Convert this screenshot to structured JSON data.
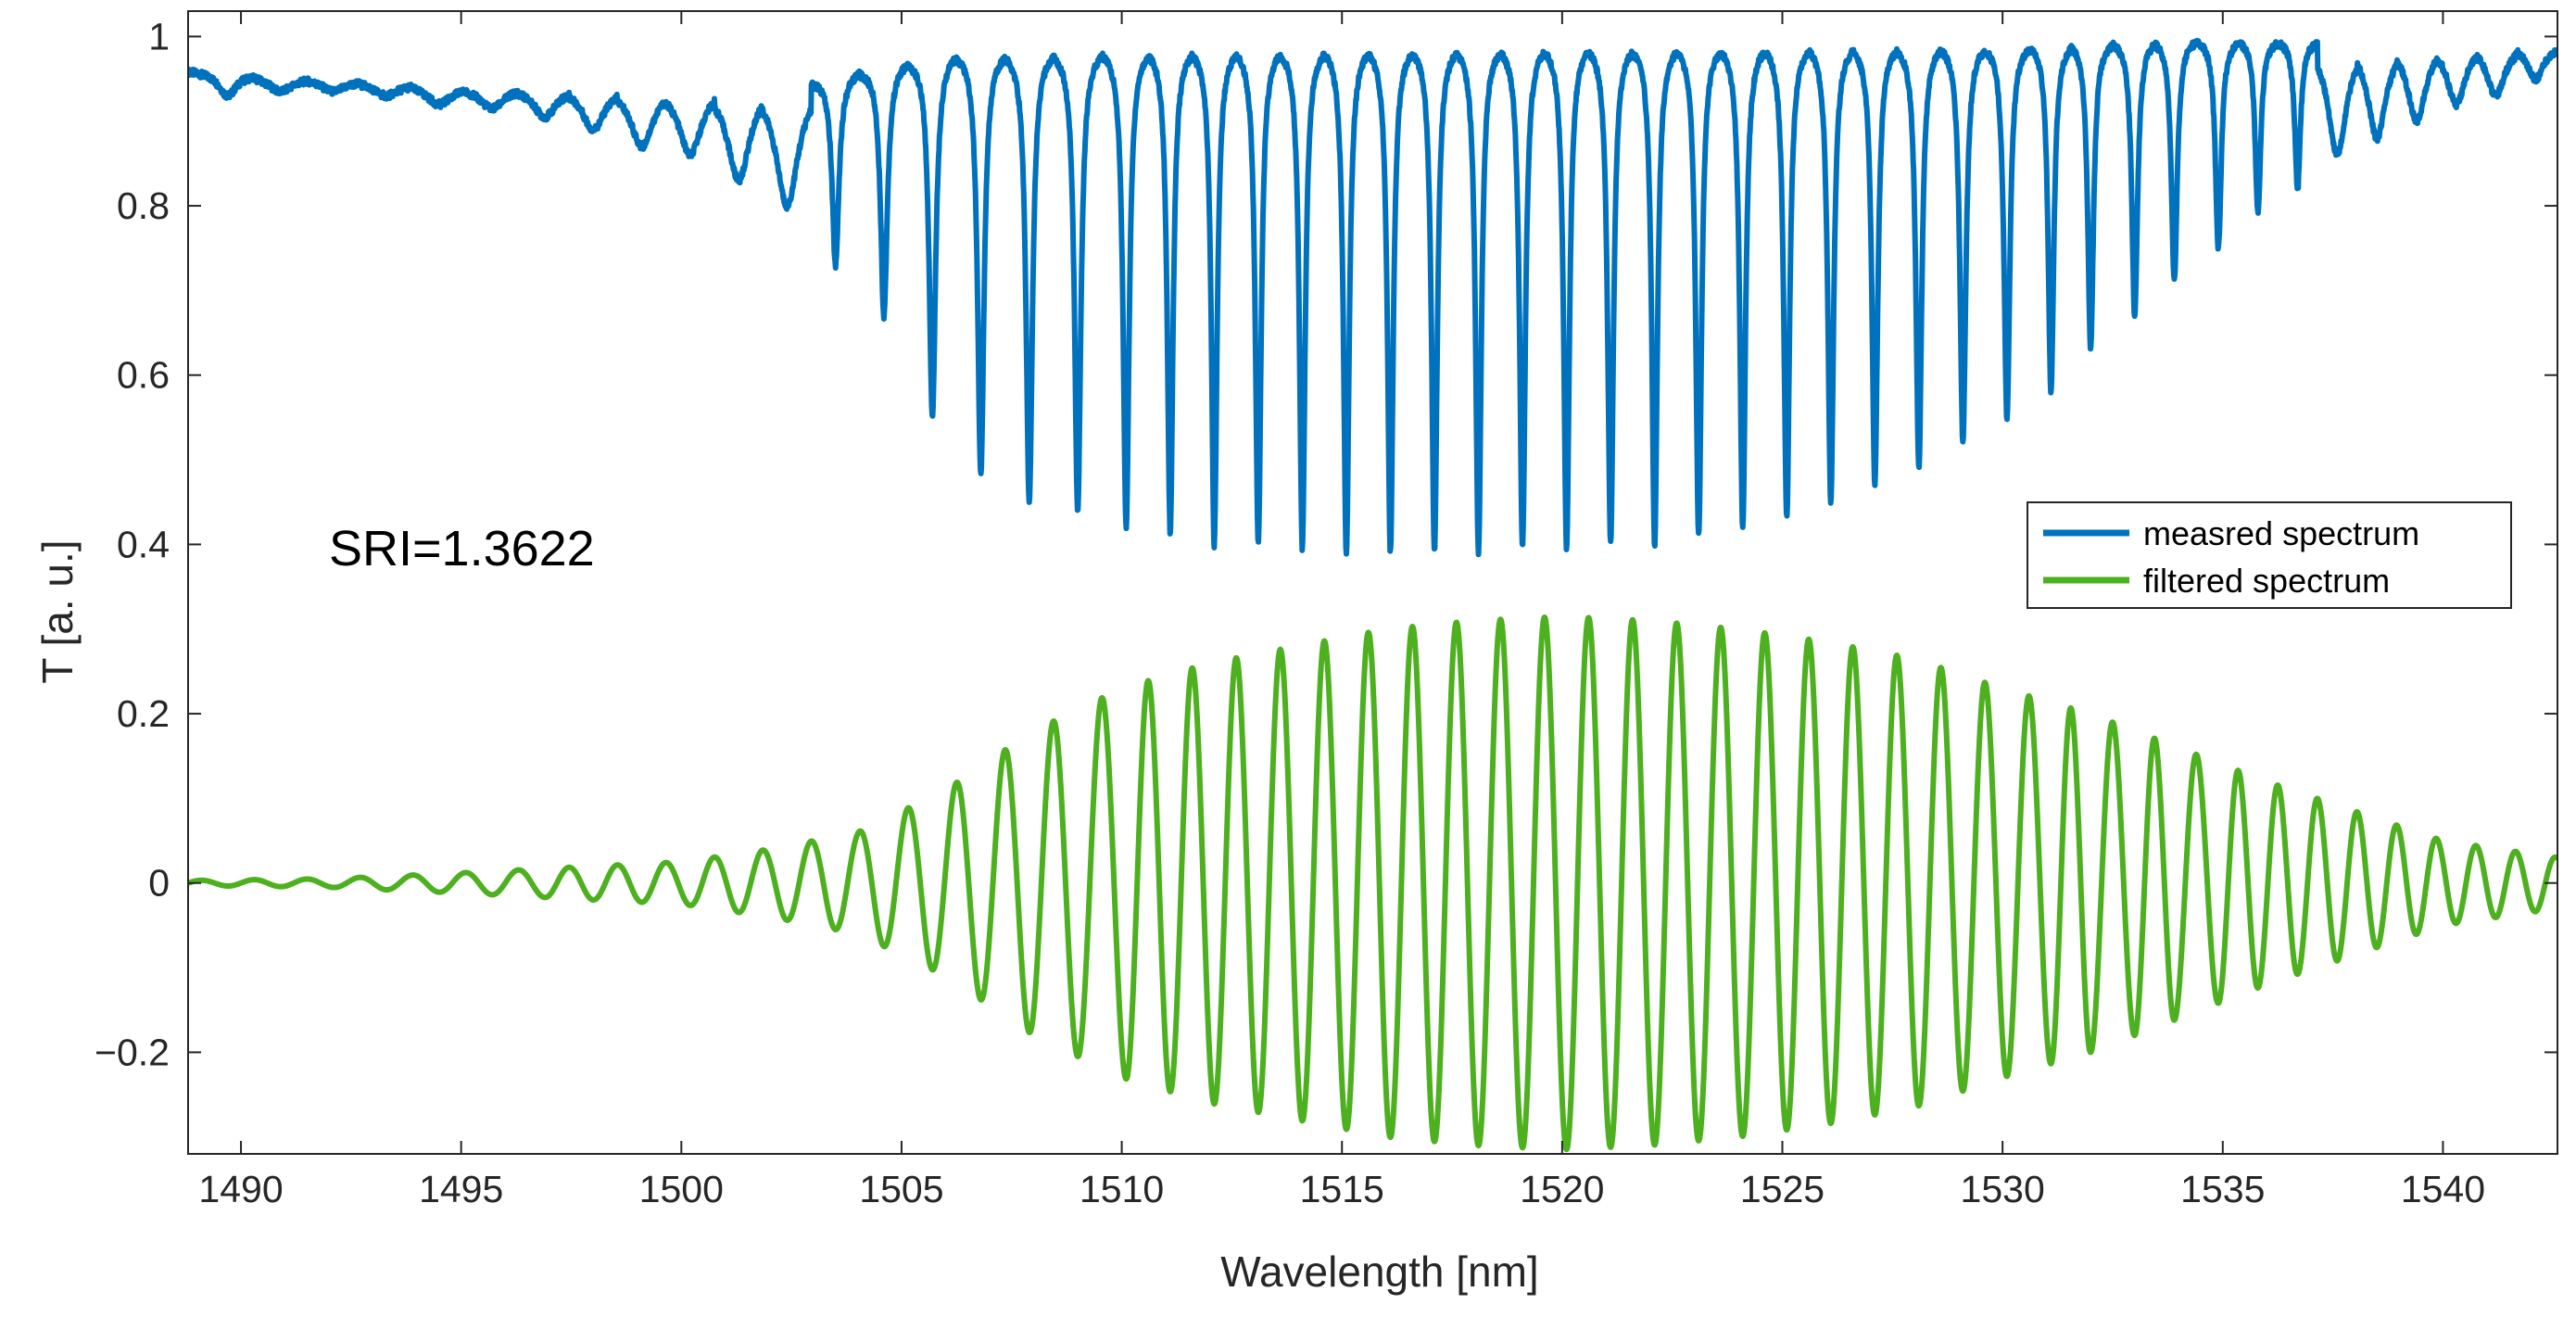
{
  "chart_data": {
    "type": "line",
    "title": "",
    "xlabel": "Wavelength [nm]",
    "ylabel": "T [a. u.]",
    "xlim": [
      1488.8,
      1542.6
    ],
    "ylim": [
      -0.32,
      1.03
    ],
    "xticks": [
      1490,
      1495,
      1500,
      1505,
      1510,
      1515,
      1520,
      1525,
      1530,
      1535,
      1540
    ],
    "xtick_labels": [
      "1490",
      "1495",
      "1500",
      "1505",
      "1510",
      "1515",
      "1520",
      "1525",
      "1530",
      "1535",
      "1540"
    ],
    "yticks": [
      -0.2,
      0,
      0.2,
      0.4,
      0.6,
      0.8,
      1
    ],
    "ytick_labels": [
      "−0.2",
      "0",
      "0.2",
      "0.4",
      "0.6",
      "0.8",
      "1"
    ],
    "grid": false,
    "legend_position": "right",
    "annotation": "SRI=1.3622",
    "series": [
      {
        "name": "measred spectrum",
        "color": "#0072BD",
        "dip_positions": [
          1489.7,
          1490.9,
          1492.1,
          1493.3,
          1494.5,
          1495.7,
          1496.9,
          1498.0,
          1499.1,
          1500.2,
          1501.3,
          1502.4,
          1503.5,
          1504.6,
          1505.7,
          1506.8,
          1507.9,
          1509.0,
          1510.1,
          1511.1,
          1512.1,
          1513.1,
          1514.1,
          1515.1,
          1516.1,
          1517.1,
          1518.1,
          1519.1,
          1520.1,
          1521.1,
          1522.1,
          1523.1,
          1524.1,
          1525.1,
          1526.1,
          1527.1,
          1528.1,
          1529.1,
          1530.1,
          1531.1,
          1532.0,
          1533.0,
          1533.9,
          1534.9,
          1535.8,
          1536.7,
          1537.6,
          1538.5,
          1539.4,
          1540.3,
          1541.2,
          1542.1
        ],
        "dip_minima": [
          0.93,
          0.935,
          0.935,
          0.93,
          0.92,
          0.915,
          0.905,
          0.89,
          0.87,
          0.86,
          0.83,
          0.8,
          0.73,
          0.67,
          0.55,
          0.48,
          0.45,
          0.44,
          0.42,
          0.415,
          0.4,
          0.4,
          0.395,
          0.39,
          0.39,
          0.39,
          0.39,
          0.395,
          0.395,
          0.4,
          0.4,
          0.41,
          0.42,
          0.43,
          0.45,
          0.47,
          0.49,
          0.52,
          0.55,
          0.58,
          0.63,
          0.67,
          0.71,
          0.75,
          0.79,
          0.82,
          0.86,
          0.88,
          0.9,
          0.92,
          0.93,
          0.95
        ],
        "envelope_top": [
          [
            1488.8,
            0.96
          ],
          [
            1495,
            0.94
          ],
          [
            1500,
            0.94
          ],
          [
            1503,
            0.95
          ],
          [
            1506,
            0.985
          ],
          [
            1510,
            0.99
          ],
          [
            1520,
            0.995
          ],
          [
            1530,
            0.995
          ],
          [
            1534,
            1.0
          ],
          [
            1538,
            0.995
          ],
          [
            1542.6,
            0.99
          ]
        ]
      },
      {
        "name": "filtered spectrum",
        "color": "#4DB01F",
        "type": "oscillation",
        "oscillation_center": 0,
        "envelope_points": [
          [
            1488.8,
            0.003
          ],
          [
            1492,
            0.005
          ],
          [
            1495,
            0.012
          ],
          [
            1498,
            0.02
          ],
          [
            1500,
            0.025
          ],
          [
            1502,
            0.04
          ],
          [
            1504,
            0.06
          ],
          [
            1506,
            0.11
          ],
          [
            1508,
            0.18
          ],
          [
            1510,
            0.23
          ],
          [
            1512,
            0.26
          ],
          [
            1514,
            0.28
          ],
          [
            1516,
            0.3
          ],
          [
            1518,
            0.31
          ],
          [
            1520,
            0.315
          ],
          [
            1522,
            0.31
          ],
          [
            1524,
            0.3
          ],
          [
            1526,
            0.285
          ],
          [
            1528,
            0.265
          ],
          [
            1530,
            0.23
          ],
          [
            1532,
            0.2
          ],
          [
            1534,
            0.16
          ],
          [
            1536,
            0.12
          ],
          [
            1538,
            0.085
          ],
          [
            1540,
            0.05
          ],
          [
            1542.6,
            0.03
          ]
        ]
      }
    ]
  }
}
